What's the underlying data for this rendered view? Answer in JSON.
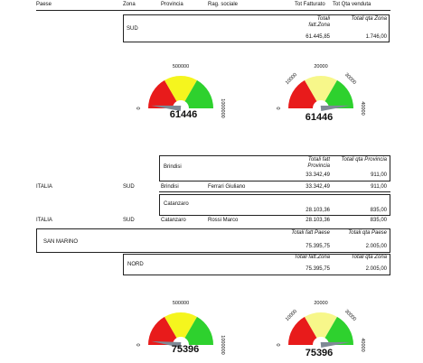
{
  "header": {
    "paese": "Paese",
    "zona": "Zona",
    "provincia": "Provincia",
    "rag_sociale": "Rag. sociale",
    "tot_fatturato": "Tot Fatturato",
    "tot_qta": "Tot Qta venduta"
  },
  "zona_sud": {
    "label": "SUD",
    "h_fatt": "Totali fatt.Zona",
    "h_qta": "Totali qta Zona",
    "fatt": "61.445,85",
    "qta": "1.746,00"
  },
  "gauges_1": {
    "left": {
      "value": "61446",
      "ticks": [
        "0",
        "500000",
        "1000000"
      ]
    },
    "right": {
      "value": "61446",
      "ticks": [
        "0",
        "10000",
        "20000",
        "30000",
        "40000"
      ]
    }
  },
  "prov_brindisi": {
    "label": "Brindisi",
    "h_fatt": "Totali fatt Provincia",
    "h_qta": "Totali qta Provincia",
    "fatt": "33.342,49",
    "qta": "911,00"
  },
  "row_1": {
    "paese": "ITALIA",
    "zona": "SUD",
    "provincia": "Brindisi",
    "rag": "Ferrari Giuliano",
    "fatt": "33.342,49",
    "qta": "911,00"
  },
  "prov_catanzaro": {
    "label": "Catanzaro",
    "fatt": "28.103,36",
    "qta": "835,00"
  },
  "row_2": {
    "paese": "ITALIA",
    "zona": "SUD",
    "provincia": "Catanzaro",
    "rag": "Rossi Marco",
    "fatt": "28.103,36",
    "qta": "835,00"
  },
  "paese_sm": {
    "label": "SAN MARINO",
    "h_fatt": "Totali fatt Paese",
    "h_qta": "Totali qta Paese",
    "fatt": "75.395,75",
    "qta": "2.005,00"
  },
  "zona_nord": {
    "label": "NORD",
    "h_fatt": "Totali fatt.Zona",
    "h_qta": "Totali qta Zona",
    "fatt": "75.395,75",
    "qta": "2.005,00"
  },
  "gauges_2": {
    "left": {
      "value": "75396",
      "ticks": [
        "0",
        "500000",
        "1000000"
      ]
    },
    "right": {
      "value": "75396",
      "ticks": [
        "0",
        "10000",
        "20000",
        "30000",
        "40000"
      ]
    }
  },
  "colors": {
    "red": "#e81b1b",
    "yellow": "#f5f51e",
    "green": "#2ed12e",
    "light_yellow": "#f7f78a",
    "needle": "#7f8a96"
  }
}
